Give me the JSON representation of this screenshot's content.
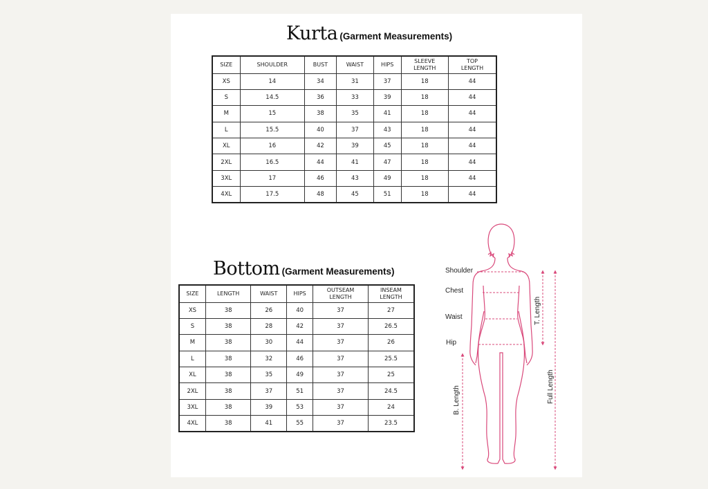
{
  "kurta": {
    "title": "Kurta",
    "subtitle": "(Garment Measurements)",
    "headers": [
      "SIZE",
      "SHOULDER",
      "BUST",
      "WAIST",
      "HIPS",
      "SLEEVE LENGTH",
      "TOP LENGTH"
    ],
    "rows": [
      [
        "XS",
        "14",
        "34",
        "31",
        "37",
        "18",
        "44"
      ],
      [
        "S",
        "14.5",
        "36",
        "33",
        "39",
        "18",
        "44"
      ],
      [
        "M",
        "15",
        "38",
        "35",
        "41",
        "18",
        "44"
      ],
      [
        "L",
        "15.5",
        "40",
        "37",
        "43",
        "18",
        "44"
      ],
      [
        "XL",
        "16",
        "42",
        "39",
        "45",
        "18",
        "44"
      ],
      [
        "2XL",
        "16.5",
        "44",
        "41",
        "47",
        "18",
        "44"
      ],
      [
        "3XL",
        "17",
        "46",
        "43",
        "49",
        "18",
        "44"
      ],
      [
        "4XL",
        "17.5",
        "48",
        "45",
        "51",
        "18",
        "44"
      ]
    ]
  },
  "bottom": {
    "title": "Bottom",
    "subtitle": "(Garment Measurements)",
    "headers": [
      "SIZE",
      "LENGTH",
      "WAIST",
      "HIPS",
      "OUTSEAM LENGTH",
      "INSEAM LENGTH"
    ],
    "rows": [
      [
        "XS",
        "38",
        "26",
        "40",
        "37",
        "27"
      ],
      [
        "S",
        "38",
        "28",
        "42",
        "37",
        "26.5"
      ],
      [
        "M",
        "38",
        "30",
        "44",
        "37",
        "26"
      ],
      [
        "L",
        "38",
        "32",
        "46",
        "37",
        "25.5"
      ],
      [
        "XL",
        "38",
        "35",
        "49",
        "37",
        "25"
      ],
      [
        "2XL",
        "38",
        "37",
        "51",
        "37",
        "24.5"
      ],
      [
        "3XL",
        "38",
        "39",
        "53",
        "37",
        "24"
      ],
      [
        "4XL",
        "38",
        "41",
        "55",
        "37",
        "23.5"
      ]
    ]
  },
  "figure": {
    "labels": {
      "shoulder": "Shoulder",
      "chest": "Chest",
      "waist": "Waist",
      "hip": "Hip",
      "t_length": "T. Length",
      "full_length": "Full Length",
      "b_length": "B. Length"
    },
    "color": "#d9487a"
  }
}
